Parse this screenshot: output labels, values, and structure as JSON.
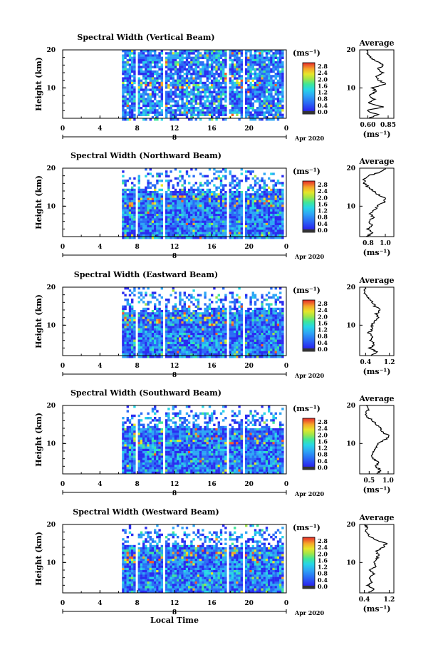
{
  "chart_data": [
    {
      "type": "heatmap",
      "title": "Spectral Width (Vertical Beam)",
      "ylabel": "Height (km)",
      "xlim": [
        0,
        24
      ],
      "ylim": [
        2,
        20
      ],
      "x_ticks": [
        "0",
        "4",
        "8",
        "12",
        "16",
        "20",
        "0"
      ],
      "y_ticks": [
        "20",
        "10"
      ],
      "date_marker": "8",
      "date_label": "Apr 2020",
      "colorbar_unit": "(ms⁻¹)",
      "colorbar_ticks": [
        "2.8",
        "2.4",
        "2.0",
        "1.6",
        "1.2",
        "0.8",
        "0.4",
        "0.0"
      ],
      "data_gaps_hours": [
        [
          0,
          6.2
        ],
        [
          7.7,
          8.0
        ],
        [
          10.7,
          11.0
        ],
        [
          11.5,
          11.7
        ],
        [
          17.5,
          17.8
        ],
        [
          19.2,
          19.5
        ]
      ],
      "average": {
        "title": "Average",
        "xlabel": "(ms⁻¹)",
        "x_ticks": [
          "0.60",
          "0.85"
        ],
        "xlim": [
          0.5,
          0.92
        ],
        "y_ticks": [
          "20",
          "10"
        ],
        "profile_heights_km": [
          2,
          3,
          4,
          5,
          6,
          7,
          8,
          9,
          10,
          11,
          12,
          13,
          14,
          15,
          16,
          17,
          18,
          19,
          20
        ],
        "profile_values": [
          0.62,
          0.72,
          0.58,
          0.78,
          0.6,
          0.68,
          0.62,
          0.7,
          0.66,
          0.82,
          0.74,
          0.7,
          0.78,
          0.72,
          0.8,
          0.7,
          0.64,
          0.6,
          0.58
        ]
      }
    },
    {
      "type": "heatmap",
      "title": "Spectral Width (Northward Beam)",
      "ylabel": "Height (km)",
      "xlim": [
        0,
        24
      ],
      "ylim": [
        2,
        20
      ],
      "x_ticks": [
        "0",
        "4",
        "8",
        "12",
        "16",
        "20",
        "0"
      ],
      "y_ticks": [
        "20",
        "10"
      ],
      "date_marker": "8",
      "date_label": "Apr 2020",
      "colorbar_unit": "(ms⁻¹)",
      "colorbar_ticks": [
        "2.8",
        "2.4",
        "2.0",
        "1.6",
        "1.2",
        "0.8",
        "0.4",
        "0.0"
      ],
      "data_gaps_hours": [
        [
          0,
          6.2
        ],
        [
          7.7,
          8.0
        ],
        [
          10.7,
          11.0
        ],
        [
          11.5,
          11.7
        ],
        [
          17.5,
          17.8
        ],
        [
          19.2,
          19.5
        ]
      ],
      "average": {
        "title": "Average",
        "xlabel": "(ms⁻¹)",
        "x_ticks": [
          "0.8",
          "1.0"
        ],
        "xlim": [
          0.7,
          1.1
        ],
        "y_ticks": [
          "20",
          "10"
        ],
        "profile_heights_km": [
          2,
          3,
          4,
          5,
          6,
          7,
          8,
          9,
          10,
          11,
          12,
          13,
          14,
          15,
          16,
          17,
          18,
          19,
          20
        ],
        "profile_values": [
          0.78,
          0.85,
          0.8,
          0.84,
          0.8,
          0.86,
          0.82,
          0.88,
          0.9,
          0.98,
          1.0,
          0.92,
          0.86,
          0.8,
          0.76,
          0.75,
          0.8,
          0.95,
          1.0
        ]
      }
    },
    {
      "type": "heatmap",
      "title": "Spectral Width (Eastward Beam)",
      "ylabel": "Height (km)",
      "xlim": [
        0,
        24
      ],
      "ylim": [
        2,
        20
      ],
      "x_ticks": [
        "0",
        "4",
        "8",
        "12",
        "16",
        "20",
        "0"
      ],
      "y_ticks": [
        "20",
        "10"
      ],
      "date_marker": "8",
      "date_label": "Apr 2020",
      "colorbar_unit": "(ms⁻¹)",
      "colorbar_ticks": [
        "2.8",
        "2.4",
        "2.0",
        "1.6",
        "1.2",
        "0.8",
        "0.4",
        "0.0"
      ],
      "data_gaps_hours": [
        [
          0,
          6.2
        ],
        [
          7.7,
          8.0
        ],
        [
          10.7,
          11.0
        ],
        [
          11.5,
          11.7
        ],
        [
          17.5,
          17.8
        ],
        [
          19.2,
          19.5
        ]
      ],
      "average": {
        "title": "Average",
        "xlabel": "(ms⁻¹)",
        "x_ticks": [
          "0.4",
          "1.2"
        ],
        "xlim": [
          0.2,
          1.35
        ],
        "y_ticks": [
          "20",
          "10"
        ],
        "profile_heights_km": [
          2,
          3,
          4,
          5,
          6,
          7,
          8,
          9,
          10,
          11,
          12,
          13,
          14,
          15,
          16,
          17,
          18,
          19,
          20
        ],
        "profile_values": [
          0.6,
          0.75,
          0.55,
          0.7,
          0.55,
          0.62,
          0.5,
          0.65,
          0.6,
          0.72,
          0.8,
          0.75,
          0.9,
          0.7,
          0.65,
          0.5,
          0.4,
          0.35,
          0.4
        ]
      }
    },
    {
      "type": "heatmap",
      "title": "Spectral Width (Southward Beam)",
      "ylabel": "Height (km)",
      "xlim": [
        0,
        24
      ],
      "ylim": [
        2,
        20
      ],
      "x_ticks": [
        "0",
        "4",
        "8",
        "12",
        "16",
        "20",
        "0"
      ],
      "y_ticks": [
        "20",
        "10"
      ],
      "date_marker": "8",
      "date_label": "Apr 2020",
      "colorbar_unit": "(ms⁻¹)",
      "colorbar_ticks": [
        "2.8",
        "2.4",
        "2.0",
        "1.6",
        "1.2",
        "0.8",
        "0.4",
        "0.0"
      ],
      "data_gaps_hours": [
        [
          0,
          6.2
        ],
        [
          7.7,
          8.0
        ],
        [
          10.7,
          11.0
        ],
        [
          11.5,
          11.7
        ],
        [
          17.5,
          17.8
        ],
        [
          19.2,
          19.5
        ]
      ],
      "average": {
        "title": "Average",
        "xlabel": "(ms⁻¹)",
        "x_ticks": [
          "0.5",
          "1.0"
        ],
        "xlim": [
          0.25,
          1.15
        ],
        "y_ticks": [
          "20",
          "10"
        ],
        "profile_heights_km": [
          2,
          3,
          4,
          5,
          6,
          7,
          8,
          9,
          10,
          11,
          12,
          13,
          14,
          15,
          16,
          17,
          18,
          19,
          20
        ],
        "profile_values": [
          0.7,
          0.8,
          0.65,
          0.78,
          0.6,
          0.55,
          0.62,
          0.7,
          0.75,
          0.92,
          1.02,
          0.85,
          0.8,
          0.7,
          0.6,
          0.45,
          0.4,
          0.5,
          0.42
        ]
      }
    },
    {
      "type": "heatmap",
      "title": "Spectral Width (Westward Beam)",
      "ylabel": "Height (km)",
      "xlabel": "Local Time",
      "xlim": [
        0,
        24
      ],
      "ylim": [
        2,
        20
      ],
      "x_ticks": [
        "0",
        "4",
        "8",
        "12",
        "16",
        "20",
        "0"
      ],
      "y_ticks": [
        "20",
        "10"
      ],
      "date_marker": "8",
      "date_label": "Apr 2020",
      "colorbar_unit": "(ms⁻¹)",
      "colorbar_ticks": [
        "2.8",
        "2.4",
        "2.0",
        "1.6",
        "1.2",
        "0.8",
        "0.4",
        "0.0"
      ],
      "data_gaps_hours": [
        [
          0,
          6.2
        ],
        [
          7.7,
          8.0
        ],
        [
          10.7,
          11.0
        ],
        [
          11.5,
          11.7
        ],
        [
          17.5,
          17.8
        ],
        [
          19.2,
          19.5
        ]
      ],
      "average": {
        "title": "Average",
        "xlabel": "(ms⁻¹)",
        "x_ticks": [
          "0.4",
          "1.2"
        ],
        "xlim": [
          0.25,
          1.35
        ],
        "y_ticks": [
          "20",
          "10"
        ],
        "profile_heights_km": [
          2,
          3,
          4,
          5,
          6,
          7,
          8,
          9,
          10,
          11,
          12,
          13,
          14,
          15,
          16,
          17,
          18,
          19,
          20
        ],
        "profile_values": [
          0.55,
          0.7,
          0.5,
          0.65,
          0.55,
          0.7,
          0.6,
          0.75,
          0.7,
          0.8,
          0.85,
          0.8,
          1.0,
          1.1,
          0.75,
          0.55,
          0.45,
          0.5,
          0.42
        ]
      }
    }
  ],
  "colors": {
    "colormap": [
      "#2d2a7a",
      "#2a2cf0",
      "#2a6cf5",
      "#2ea6f5",
      "#27d6e6",
      "#3ee69a",
      "#9ee64a",
      "#e6e62a",
      "#f5a62a",
      "#f55a2a",
      "#e62a2a"
    ]
  }
}
